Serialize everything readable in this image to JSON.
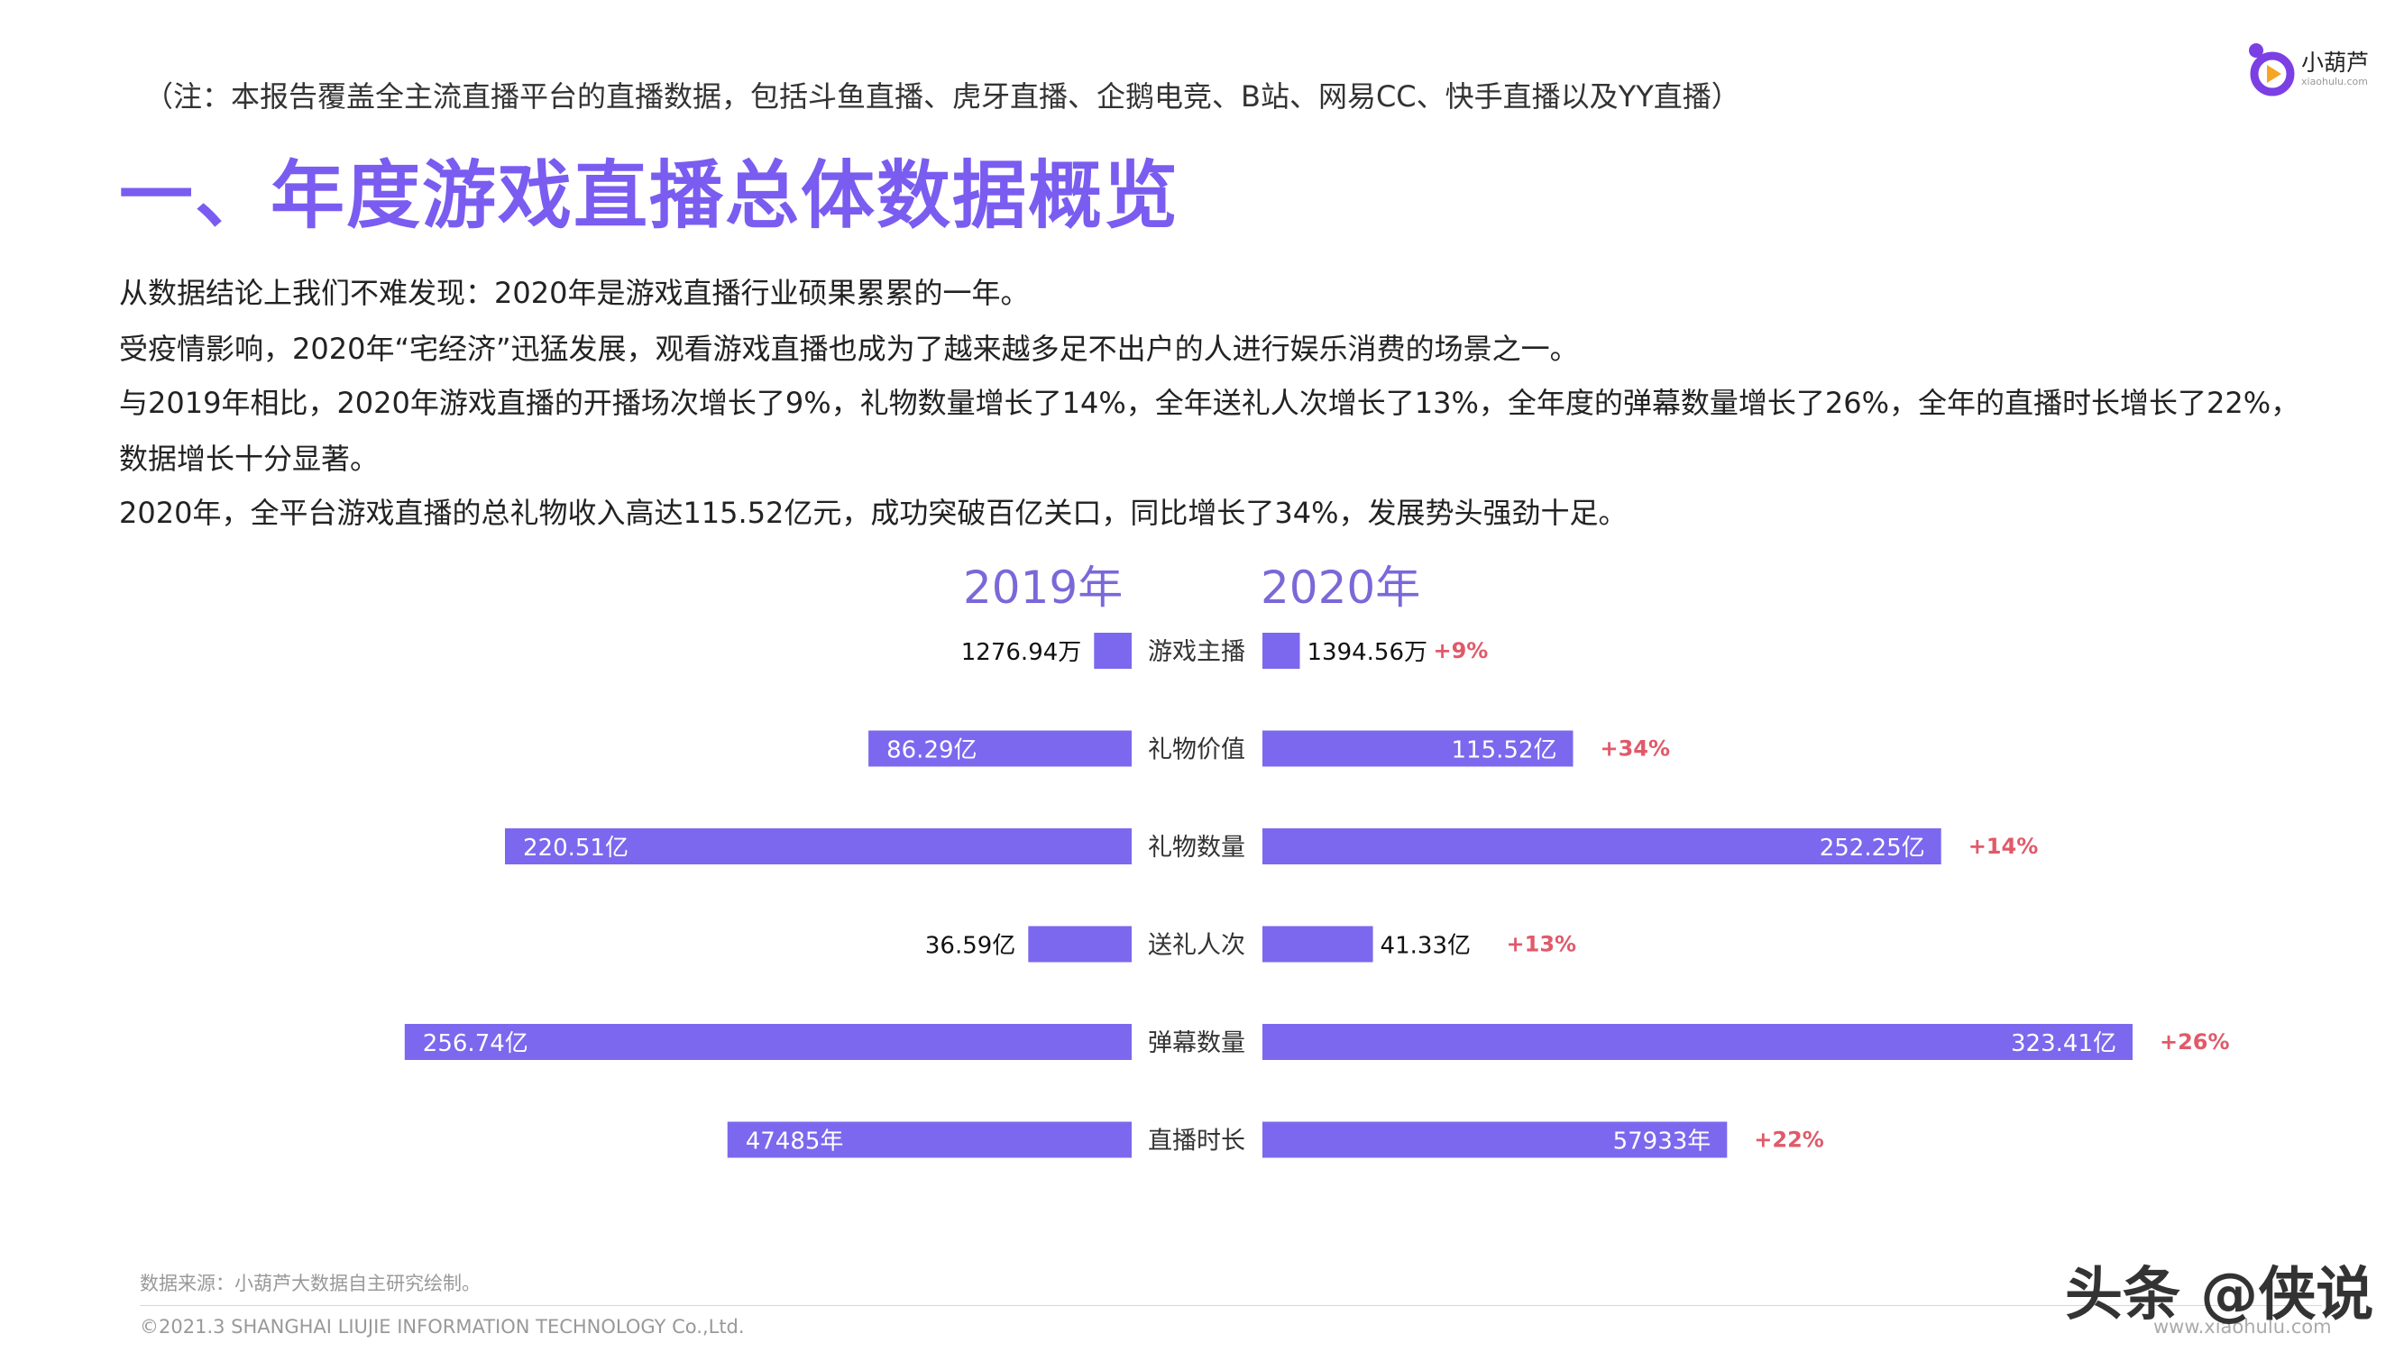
{
  "header": {
    "note": "（注：本报告覆盖全主流直播平台的直播数据，包括斗鱼直播、虎牙直播、企鹅电竞、B站、网易CC、快手直播以及YY直播）",
    "title": "一、年度游戏直播总体数据概览",
    "logo_name": "小葫芦",
    "logo_url": "xiaohulu.com"
  },
  "paragraphs": [
    "从数据结论上我们不难发现：2020年是游戏直播行业硕果累累的一年。",
    "受疫情影响，2020年“宅经济”迅猛发展，观看游戏直播也成为了越来越多足不出户的人进行娱乐消费的场景之一。",
    "与2019年相比，2020年游戏直播的开播场次增长了9%，礼物数量增长了14%，全年送礼人次增长了13%，全年度的弹幕数量增长了26%，全年的直播时长增长了22%，",
    "数据增长十分显著。",
    "2020年，全平台游戏直播的总礼物收入高达115.52亿元，成功突破百亿关口，同比增长了34%，发展势头强劲十足。"
  ],
  "chart_data": {
    "type": "bar",
    "title": "",
    "series_names": [
      "2019年",
      "2020年"
    ],
    "bar_color": "#7b68ee",
    "growth_color": "#e05a6a",
    "categories": [
      "游戏主播",
      "礼物价值",
      "礼物数量",
      "送礼人次",
      "弹幕数量",
      "直播时长"
    ],
    "rows": [
      {
        "category": "游戏主播",
        "v2019": 1276.94,
        "label2019": "1276.94万",
        "v2020": 1394.56,
        "label2020": "1394.56万",
        "growth": "+9%",
        "scale2019": 0.06,
        "scale2020": 0.043
      },
      {
        "category": "礼物价值",
        "v2019": 86.29,
        "label2019": "86.29亿",
        "v2020": 115.52,
        "label2020": "115.52亿",
        "growth": "+34%",
        "scale2019": 0.42,
        "scale2020": 0.357
      },
      {
        "category": "礼物数量",
        "v2019": 220.51,
        "label2019": "220.51亿",
        "v2020": 252.25,
        "label2020": "252.25亿",
        "growth": "+14%",
        "scale2019": 1.0,
        "scale2020": 0.78
      },
      {
        "category": "送礼人次",
        "v2019": 36.59,
        "label2019": "36.59亿",
        "v2020": 41.33,
        "label2020": "41.33亿",
        "growth": "+13%",
        "scale2019": 0.165,
        "scale2020": 0.127
      },
      {
        "category": "弹幕数量",
        "v2019": 256.74,
        "label2019": "256.74亿",
        "v2020": 323.41,
        "label2020": "323.41亿",
        "growth": "+26%",
        "scale2019": 1.16,
        "scale2020": 1.0
      },
      {
        "category": "直播时长",
        "v2019": 47485,
        "label2019": "47485年",
        "v2020": 57933,
        "label2020": "57933年",
        "growth": "+22%",
        "scale2019": 0.645,
        "scale2020": 0.534
      }
    ]
  },
  "footer": {
    "source": "数据来源：小葫芦大数据自主研究绘制。",
    "copyright": "©2021.3 SHANGHAI LIUJIE INFORMATION TECHNOLOGY Co.,Ltd.",
    "url": "www.xiaohulu.com",
    "overlay": "头条 @侠说"
  }
}
